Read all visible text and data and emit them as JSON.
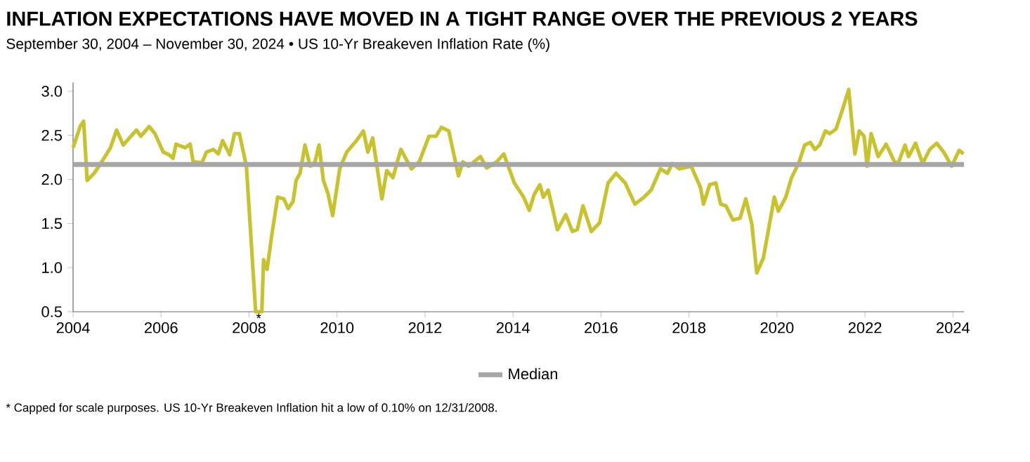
{
  "chart_data": {
    "type": "line",
    "title": "INFLATION EXPECTATIONS HAVE MOVED IN A TIGHT RANGE OVER THE PREVIOUS 2 YEARS",
    "subtitle": "September 30, 2004 – November 30, 2024 • US 10-Yr Breakeven Inflation Rate (%)",
    "x": [
      2004.0,
      2004.16,
      2004.24,
      2004.32,
      2004.48,
      2004.69,
      2004.85,
      2004.99,
      2005.14,
      2005.44,
      2005.54,
      2005.73,
      2005.86,
      2006.05,
      2006.18,
      2006.27,
      2006.34,
      2006.55,
      2006.66,
      2006.73,
      2006.93,
      2007.03,
      2007.19,
      2007.3,
      2007.4,
      2007.56,
      2007.67,
      2007.78,
      2007.94,
      2008.15,
      2008.29,
      2008.33,
      2008.41,
      2008.52,
      2008.65,
      2008.79,
      2008.89,
      2009.0,
      2009.07,
      2009.16,
      2009.27,
      2009.39,
      2009.5,
      2009.59,
      2009.69,
      2009.8,
      2009.9,
      2010.06,
      2010.22,
      2010.44,
      2010.6,
      2010.7,
      2010.81,
      2011.02,
      2011.13,
      2011.27,
      2011.45,
      2011.69,
      2011.87,
      2012.09,
      2012.25,
      2012.37,
      2012.54,
      2012.76,
      2012.86,
      2012.99,
      2013.26,
      2013.4,
      2013.63,
      2013.79,
      2014.03,
      2014.24,
      2014.37,
      2014.48,
      2014.61,
      2014.69,
      2014.8,
      2015.01,
      2015.2,
      2015.35,
      2015.46,
      2015.59,
      2015.78,
      2015.97,
      2016.16,
      2016.34,
      2016.55,
      2016.77,
      2016.98,
      2017.14,
      2017.35,
      2017.51,
      2017.62,
      2017.78,
      2018.05,
      2018.26,
      2018.33,
      2018.47,
      2018.61,
      2018.72,
      2018.84,
      2019.0,
      2019.16,
      2019.29,
      2019.43,
      2019.54,
      2019.69,
      2019.94,
      2020.03,
      2020.2,
      2020.33,
      2020.49,
      2020.63,
      2020.76,
      2020.86,
      2020.97,
      2021.1,
      2021.2,
      2021.34,
      2021.5,
      2021.63,
      2021.77,
      2021.87,
      2021.98,
      2022.05,
      2022.14,
      2022.3,
      2022.48,
      2022.67,
      2022.76,
      2022.91,
      2022.99,
      2023.15,
      2023.31,
      2023.47,
      2023.63,
      2023.79,
      2023.97,
      2024.14,
      2024.24
    ],
    "series": [
      {
        "color": "#c9c22f",
        "values": [
          2.36,
          2.6,
          2.66,
          1.99,
          2.07,
          2.23,
          2.36,
          2.56,
          2.39,
          2.56,
          2.49,
          2.6,
          2.52,
          2.31,
          2.28,
          2.24,
          2.4,
          2.36,
          2.4,
          2.2,
          2.19,
          2.31,
          2.34,
          2.29,
          2.44,
          2.28,
          2.52,
          2.52,
          2.15,
          0.5,
          0.5,
          1.09,
          0.98,
          1.38,
          1.8,
          1.78,
          1.67,
          1.75,
          1.99,
          2.07,
          2.39,
          2.15,
          2.2,
          2.39,
          1.99,
          1.83,
          1.59,
          2.12,
          2.31,
          2.44,
          2.55,
          2.31,
          2.47,
          1.78,
          2.1,
          2.02,
          2.34,
          2.12,
          2.2,
          2.49,
          2.49,
          2.59,
          2.55,
          2.04,
          2.2,
          2.15,
          2.26,
          2.13,
          2.2,
          2.29,
          1.96,
          1.8,
          1.65,
          1.83,
          1.94,
          1.8,
          1.88,
          1.43,
          1.6,
          1.41,
          1.43,
          1.7,
          1.41,
          1.51,
          1.96,
          2.07,
          1.96,
          1.72,
          1.8,
          1.88,
          2.12,
          2.07,
          2.18,
          2.12,
          2.15,
          1.91,
          1.72,
          1.94,
          1.96,
          1.72,
          1.7,
          1.54,
          1.56,
          1.78,
          1.49,
          0.94,
          1.11,
          1.8,
          1.64,
          1.8,
          2.02,
          2.18,
          2.39,
          2.42,
          2.34,
          2.39,
          2.55,
          2.52,
          2.57,
          2.81,
          3.02,
          2.29,
          2.55,
          2.49,
          2.15,
          2.52,
          2.26,
          2.4,
          2.2,
          2.19,
          2.39,
          2.26,
          2.41,
          2.18,
          2.34,
          2.41,
          2.31,
          2.15,
          2.33,
          2.29
        ]
      }
    ],
    "xlim": [
      2004,
      2024.25
    ],
    "xticks": [
      2004,
      2006,
      2008,
      2010,
      2012,
      2014,
      2016,
      2018,
      2020,
      2022,
      2024
    ],
    "ylim": [
      0.5,
      3.1
    ],
    "yticks": [
      {
        "value": 0.5,
        "label": "0.5"
      },
      {
        "value": 1,
        "label": "1.0"
      },
      {
        "value": 1.5,
        "label": "1.5"
      },
      {
        "value": 2,
        "label": "2.0"
      },
      {
        "value": 2.5,
        "label": "2.5"
      },
      {
        "value": 3,
        "label": "3.0"
      }
    ],
    "ref_lines": [
      {
        "axis": "y",
        "value": 2.17,
        "label": "Median",
        "color": "#a6a6a6"
      }
    ],
    "annotations": [
      {
        "text": "*",
        "x": 2008.22,
        "y": 0.5
      },
      "* Capped for scale purposes. US 10-Yr Breakeven Inflation hit a low of 0.10% on 12/31/2008."
    ],
    "legend": "bottom",
    "grid": false,
    "marker": "none",
    "line_style": "solid"
  }
}
